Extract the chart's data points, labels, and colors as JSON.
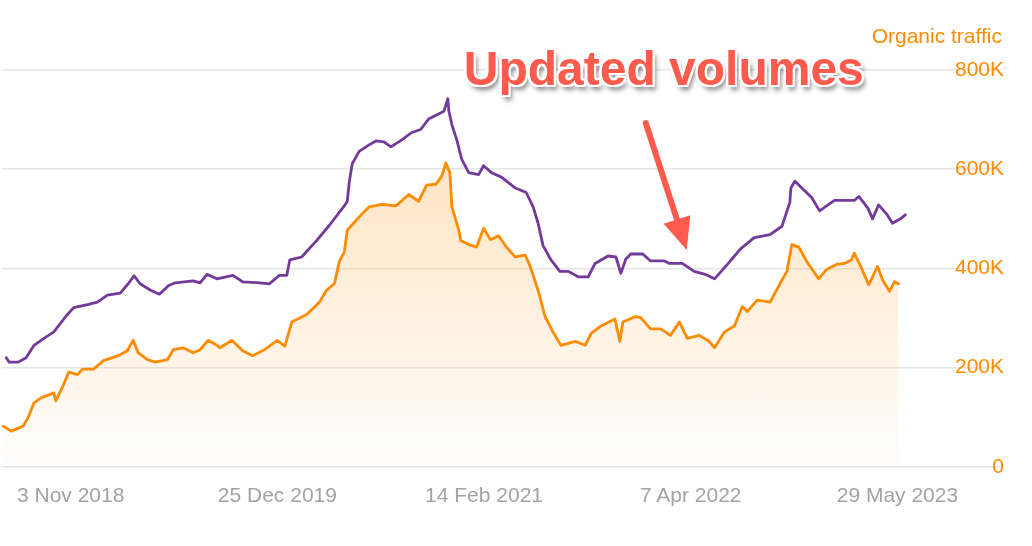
{
  "chart_data": {
    "type": "area",
    "ylabel": "Organic traffic",
    "series": [
      {
        "type": "area",
        "color": "#ff8c00",
        "x": [
          "2018-06-20",
          "2018-07-06",
          "2018-07-30",
          "2018-08-09",
          "2018-08-21",
          "2018-09-04",
          "2018-09-30",
          "2018-10-04",
          "2018-10-18",
          "2018-10-30",
          "2018-11-17",
          "2018-11-27",
          "2018-12-19",
          "2019-01-08",
          "2019-02-07",
          "2019-02-25",
          "2019-03-09",
          "2019-03-19",
          "2019-04-07",
          "2019-04-23",
          "2019-05-17",
          "2019-05-29",
          "2019-06-18",
          "2019-07-08",
          "2019-07-22",
          "2019-08-07",
          "2019-08-25",
          "2019-08-31",
          "2019-09-24",
          "2019-10-16",
          "2019-11-05",
          "2019-11-29",
          "2019-12-25",
          "2020-01-09",
          "2020-01-23",
          "2020-02-22",
          "2020-03-19",
          "2020-04-02",
          "2020-04-18",
          "2020-04-28",
          "2020-05-08",
          "2020-05-14",
          "2020-06-01",
          "2020-06-13",
          "2020-06-27",
          "2020-07-23",
          "2020-08-20",
          "2020-09-15",
          "2020-10-05",
          "2020-10-21",
          "2020-11-09",
          "2020-11-21",
          "2020-11-29",
          "2020-12-07",
          "2020-12-11",
          "2020-12-25",
          "2020-12-29",
          "2021-01-14",
          "2021-01-30",
          "2021-02-13",
          "2021-02-27",
          "2021-03-15",
          "2021-03-31",
          "2021-04-18",
          "2021-05-08",
          "2021-05-18",
          "2021-06-03",
          "2021-06-17",
          "2021-07-03",
          "2021-07-19",
          "2021-08-17",
          "2021-09-06",
          "2021-09-18",
          "2021-10-08",
          "2021-11-05",
          "2021-11-15",
          "2021-11-21",
          "2021-12-17",
          "2021-12-27",
          "2022-01-16",
          "2022-02-05",
          "2022-02-25",
          "2022-03-15",
          "2022-03-31",
          "2022-04-24",
          "2022-05-14",
          "2022-05-25",
          "2022-06-14",
          "2022-07-04",
          "2022-07-20",
          "2022-07-30",
          "2022-08-19",
          "2022-09-14",
          "2022-10-04",
          "2022-10-18",
          "2022-10-28",
          "2022-11-11",
          "2022-11-27",
          "2022-12-21",
          "2023-01-06",
          "2023-01-26",
          "2023-02-11",
          "2023-02-25",
          "2023-03-03",
          "2023-03-16",
          "2023-04-01",
          "2023-04-19",
          "2023-04-29",
          "2023-05-13",
          "2023-05-23",
          "2023-05-31"
        ],
        "values": [
          82000,
          72000,
          82000,
          99000,
          129000,
          139000,
          149000,
          133000,
          162000,
          191000,
          186000,
          197000,
          197000,
          214000,
          224000,
          234000,
          255000,
          230000,
          216000,
          211000,
          216000,
          236000,
          240000,
          230000,
          236000,
          255000,
          245000,
          240000,
          255000,
          234000,
          224000,
          236000,
          255000,
          243000,
          292000,
          307000,
          332000,
          356000,
          369000,
          414000,
          433000,
          477000,
          497000,
          510000,
          524000,
          529000,
          526000,
          549000,
          535000,
          568000,
          570000,
          587000,
          613000,
          593000,
          524000,
          477000,
          456000,
          448000,
          443000,
          481000,
          458000,
          466000,
          443000,
          423000,
          427000,
          404000,
          356000,
          303000,
          272000,
          245000,
          253000,
          245000,
          269000,
          284000,
          298000,
          253000,
          292000,
          303000,
          301000,
          278000,
          278000,
          265000,
          292000,
          259000,
          265000,
          253000,
          240000,
          272000,
          284000,
          323000,
          313000,
          336000,
          332000,
          369000,
          394000,
          448000,
          443000,
          414000,
          379000,
          398000,
          408000,
          410000,
          417000,
          431000,
          404000,
          367000,
          404000,
          377000,
          354000,
          373000,
          369000
        ]
      },
      {
        "type": "line",
        "color": "#733a9a",
        "x": [
          "2018-06-26",
          "2018-07-02",
          "2018-07-20",
          "2018-08-05",
          "2018-08-21",
          "2018-09-10",
          "2018-09-30",
          "2018-10-24",
          "2018-11-09",
          "2018-12-07",
          "2018-12-27",
          "2019-01-16",
          "2019-02-11",
          "2019-02-27",
          "2019-03-11",
          "2019-03-23",
          "2019-04-13",
          "2019-05-01",
          "2019-05-19",
          "2019-06-02",
          "2019-07-08",
          "2019-07-22",
          "2019-08-05",
          "2019-08-25",
          "2019-09-26",
          "2019-10-16",
          "2019-11-19",
          "2019-12-09",
          "2019-12-29",
          "2020-01-13",
          "2020-01-19",
          "2020-02-12",
          "2020-03-13",
          "2020-04-08",
          "2020-05-08",
          "2020-05-14",
          "2020-05-18",
          "2020-05-24",
          "2020-06-07",
          "2020-06-27",
          "2020-07-11",
          "2020-07-27",
          "2020-08-10",
          "2020-09-01",
          "2020-09-21",
          "2020-10-09",
          "2020-10-25",
          "2020-11-25",
          "2020-12-03",
          "2020-12-05",
          "2020-12-11",
          "2020-12-21",
          "2020-12-31",
          "2021-01-14",
          "2021-02-03",
          "2021-02-13",
          "2021-03-01",
          "2021-03-21",
          "2021-04-18",
          "2021-05-10",
          "2021-05-24",
          "2021-06-03",
          "2021-06-13",
          "2021-06-29",
          "2021-07-17",
          "2021-08-03",
          "2021-08-23",
          "2021-09-12",
          "2021-09-26",
          "2021-10-22",
          "2021-11-07",
          "2021-11-17",
          "2021-11-27",
          "2021-12-07",
          "2021-12-31",
          "2022-01-16",
          "2022-02-13",
          "2022-02-23",
          "2022-03-21",
          "2022-04-14",
          "2022-05-06",
          "2022-05-25",
          "2022-06-20",
          "2022-07-16",
          "2022-08-13",
          "2022-09-14",
          "2022-10-08",
          "2022-10-24",
          "2022-10-26",
          "2022-11-03",
          "2022-11-17",
          "2022-12-07",
          "2022-12-23",
          "2023-01-06",
          "2023-01-22",
          "2023-03-03",
          "2023-03-12",
          "2023-03-30",
          "2023-04-09",
          "2023-04-21",
          "2023-05-07",
          "2023-05-19",
          "2023-06-04",
          "2023-06-14"
        ],
        "values": [
          220000,
          211000,
          211000,
          220000,
          245000,
          259000,
          272000,
          303000,
          321000,
          327000,
          332000,
          346000,
          350000,
          369000,
          385000,
          369000,
          356000,
          348000,
          365000,
          371000,
          375000,
          371000,
          388000,
          379000,
          386000,
          373000,
          371000,
          369000,
          386000,
          386000,
          417000,
          423000,
          456000,
          487000,
          526000,
          535000,
          574000,
          611000,
          636000,
          649000,
          657000,
          655000,
          645000,
          659000,
          674000,
          680000,
          701000,
          717000,
          742000,
          717000,
          690000,
          659000,
          620000,
          593000,
          589000,
          607000,
          593000,
          584000,
          562000,
          553000,
          524000,
          491000,
          446000,
          417000,
          394000,
          394000,
          383000,
          383000,
          410000,
          425000,
          423000,
          390000,
          419000,
          429000,
          429000,
          415000,
          415000,
          410000,
          410000,
          394000,
          388000,
          379000,
          408000,
          439000,
          462000,
          468000,
          485000,
          533000,
          562000,
          576000,
          562000,
          543000,
          516000,
          526000,
          537000,
          537000,
          545000,
          522000,
          500000,
          528000,
          510000,
          491000,
          500000,
          508000
        ]
      }
    ],
    "xlim": [
      "2018-06-16",
      "2023-12-26"
    ],
    "xticks": [
      {
        "value": "2018-11-03",
        "label": "3 Nov 2018"
      },
      {
        "value": "2019-12-25",
        "label": "25 Dec 2019"
      },
      {
        "value": "2021-02-14",
        "label": "14 Feb 2021"
      },
      {
        "value": "2022-04-07",
        "label": "7 Apr 2022"
      },
      {
        "value": "2023-05-29",
        "label": "29 May 2023"
      }
    ],
    "ylim": [
      0,
      800000
    ],
    "yticks": [
      0,
      {
        "value": 200000,
        "label": "200K"
      },
      {
        "value": 400000,
        "label": "400K"
      },
      {
        "value": 600000,
        "label": "600K"
      },
      {
        "value": 800000,
        "label": "800K"
      }
    ],
    "grid": "y",
    "annotations": [
      "Updated volumes"
    ]
  }
}
